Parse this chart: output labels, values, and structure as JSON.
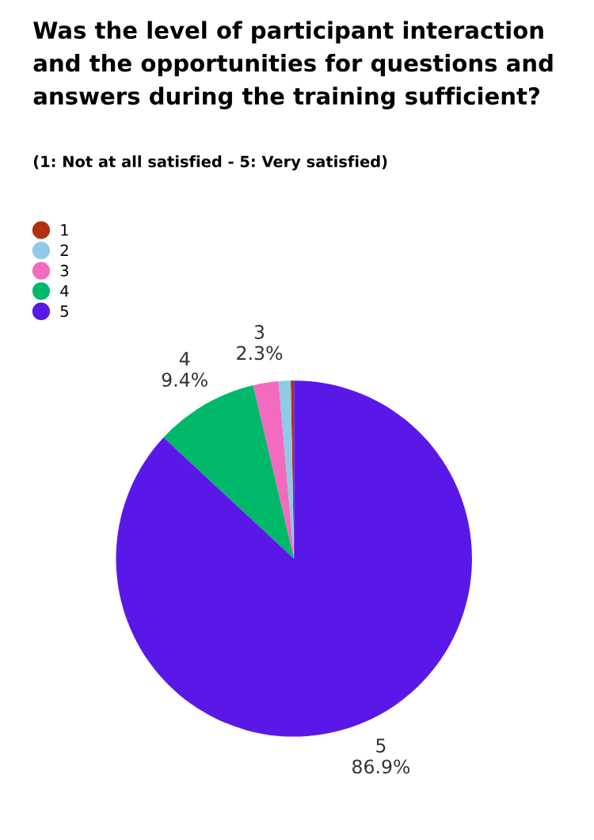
{
  "chart_data": {
    "type": "pie",
    "title": "Was the level of participant interaction and the opportunities for questions and answers during the training sufficient?",
    "subtitle": "(1: Not at all satisfied - 5: Very satisfied)",
    "categories": [
      "1",
      "2",
      "3",
      "4",
      "5"
    ],
    "values": [
      0.3,
      1.1,
      2.3,
      9.4,
      86.9
    ],
    "colors": [
      "#b3300f",
      "#8fcbe8",
      "#f26bbf",
      "#00b86a",
      "#5a18e8"
    ],
    "value_labels": [
      null,
      null,
      "2.3%",
      "9.4%",
      "86.9%"
    ],
    "legend": "top left",
    "marker": "circle"
  }
}
